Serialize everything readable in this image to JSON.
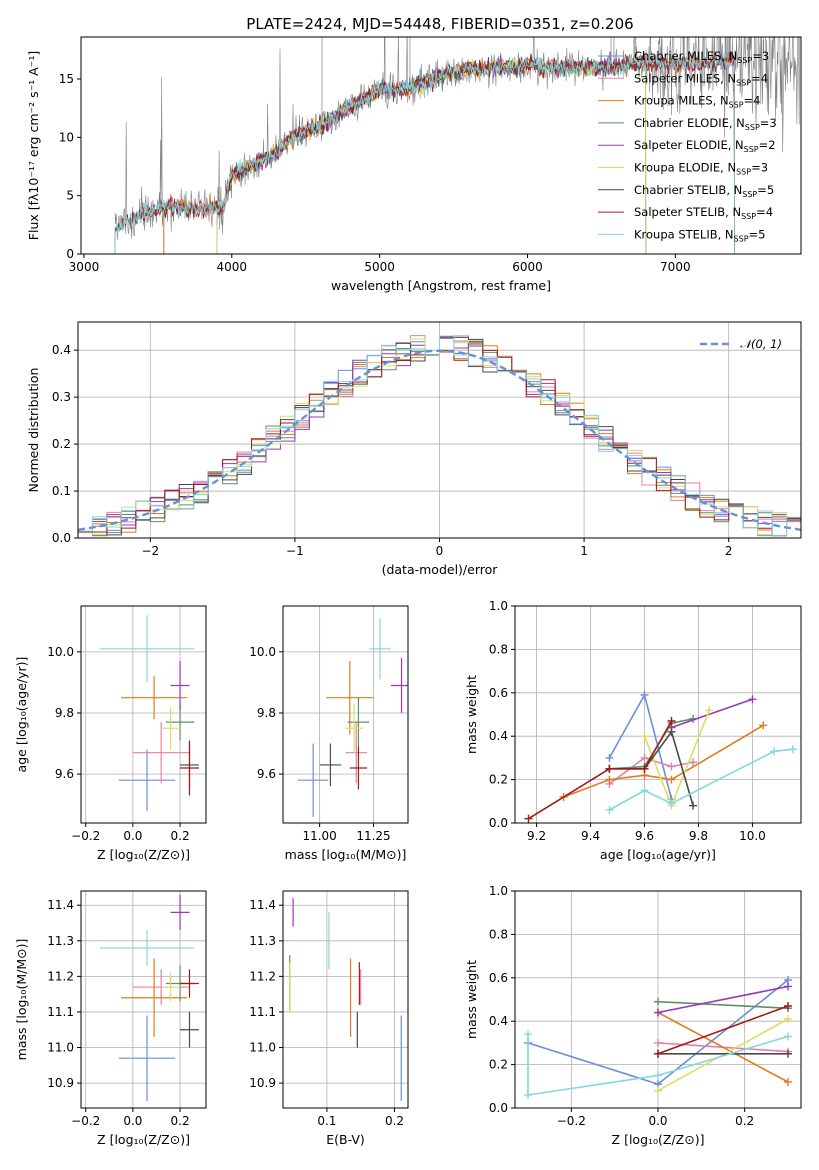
{
  "figure": {
    "title": "PLATE=2424, MJD=54448, FIBERID=0351, z=0.206"
  },
  "colors": {
    "Chabrier MILES": "#6a8fd8",
    "Salpeter MILES": "#e87ea8",
    "Kroupa MILES": "#e07a1f",
    "Chabrier ELODIE": "#5f8f68",
    "Salpeter ELODIE": "#9a38b8",
    "Kroupa ELODIE": "#d8e060",
    "Chabrier STELIB": "#4a4a4a",
    "Salpeter STELIB": "#a01a1a",
    "Kroupa STELIB": "#80d8e0",
    "data": "#7f7f7f",
    "gaussian": "#6a8fd8"
  },
  "chart_data": [
    {
      "id": "spectrum",
      "type": "line",
      "xlabel": "wavelength [Angstrom, rest frame]",
      "ylabel": "Flux [fλ10⁻¹⁷ erg cm⁻² s⁻¹ A⁻¹]",
      "xlim": [
        2980,
        7850
      ],
      "ylim": [
        0,
        18.6
      ],
      "xticks": [
        3000,
        4000,
        5000,
        6000,
        7000
      ],
      "yticks": [
        0,
        5,
        10,
        15
      ],
      "grid": false,
      "legend_position": "top-right",
      "continuum_points": [
        [
          3200,
          0
        ],
        [
          3210,
          2.2
        ],
        [
          3400,
          3.4
        ],
        [
          3600,
          4.2
        ],
        [
          3700,
          3.8
        ],
        [
          3850,
          4.0
        ],
        [
          3950,
          4.1
        ],
        [
          4000,
          6.8
        ],
        [
          4100,
          7.4
        ],
        [
          4300,
          8.6
        ],
        [
          4400,
          10.0
        ],
        [
          4600,
          11.0
        ],
        [
          4800,
          12.6
        ],
        [
          5000,
          14.0
        ],
        [
          5200,
          14.2
        ],
        [
          5400,
          15.3
        ],
        [
          5600,
          15.8
        ],
        [
          5800,
          15.9
        ],
        [
          6000,
          16.2
        ],
        [
          6200,
          16.0
        ],
        [
          6500,
          16.0
        ],
        [
          6800,
          16.4
        ],
        [
          7000,
          16.3
        ],
        [
          7200,
          16.4
        ],
        [
          7400,
          16.5
        ]
      ],
      "model_ranges": [
        {
          "name": "Chabrier MILES",
          "range": [
            3540,
            7400
          ]
        },
        {
          "name": "Salpeter MILES",
          "range": [
            3540,
            7400
          ]
        },
        {
          "name": "Kroupa MILES",
          "range": [
            3540,
            7400
          ]
        },
        {
          "name": "Chabrier ELODIE",
          "range": [
            3900,
            6800
          ]
        },
        {
          "name": "Salpeter ELODIE",
          "range": [
            3900,
            6800
          ]
        },
        {
          "name": "Kroupa ELODIE",
          "range": [
            3900,
            6800
          ]
        },
        {
          "name": "Chabrier STELIB",
          "range": [
            3210,
            7400
          ]
        },
        {
          "name": "Salpeter STELIB",
          "range": [
            3210,
            7400
          ]
        },
        {
          "name": "Kroupa STELIB",
          "range": [
            3210,
            7400
          ]
        }
      ],
      "legend": [
        {
          "model": "Chabrier MILES",
          "nssp": "3"
        },
        {
          "model": "Salpeter MILES",
          "nssp": "4"
        },
        {
          "model": "Kroupa MILES",
          "nssp": "4"
        },
        {
          "model": "Chabrier ELODIE",
          "nssp": "3"
        },
        {
          "model": "Salpeter ELODIE",
          "nssp": "2"
        },
        {
          "model": "Kroupa ELODIE",
          "nssp": "3"
        },
        {
          "model": "Chabrier STELIB",
          "nssp": "5"
        },
        {
          "model": "Salpeter STELIB",
          "nssp": "4"
        },
        {
          "model": "Kroupa STELIB",
          "nssp": "5"
        }
      ],
      "legend_label_mid": ", N",
      "legend_label_sub": "SSP",
      "legend_label_eq": "="
    },
    {
      "id": "residuals",
      "type": "step",
      "xlabel": "(data-model)/error",
      "ylabel": "Normed distribution",
      "xlim": [
        -2.5,
        2.5
      ],
      "ylim": [
        0,
        0.46
      ],
      "xticks": [
        -2,
        -1,
        0,
        1,
        2
      ],
      "yticks": [
        0.0,
        0.1,
        0.2,
        0.3,
        0.4
      ],
      "bin_width": 0.1,
      "grid": true,
      "legend_position": "top-right",
      "legend": [
        {
          "label": "𝒩(0, 1)"
        }
      ]
    },
    {
      "id": "age-metallicity",
      "type": "errorbar",
      "xlabel": "Z [log₁₀(Z/Z⊙)]",
      "ylabel": "age  [log₁₀(age/yr)]",
      "xlim": [
        -0.22,
        0.31
      ],
      "ylim": [
        9.44,
        10.15
      ],
      "xticks": [
        -0.2,
        0.0,
        0.2
      ],
      "yticks": [
        9.6,
        9.8,
        10.0
      ],
      "grid": true,
      "points": [
        {
          "name": "Chabrier MILES",
          "x": 0.06,
          "xerr": 0.12,
          "y": 9.58,
          "yerr": 0.1
        },
        {
          "name": "Salpeter MILES",
          "x": 0.12,
          "xerr": 0.12,
          "y": 9.67,
          "yerr": 0.1
        },
        {
          "name": "Kroupa MILES",
          "x": 0.09,
          "xerr": 0.14,
          "y": 9.85,
          "yerr": 0.07
        },
        {
          "name": "Chabrier ELODIE",
          "x": 0.2,
          "xerr": 0.06,
          "y": 9.77,
          "yerr": 0.06
        },
        {
          "name": "Salpeter ELODIE",
          "x": 0.2,
          "xerr": 0.04,
          "y": 9.89,
          "yerr": 0.08
        },
        {
          "name": "Kroupa ELODIE",
          "x": 0.16,
          "xerr": 0.04,
          "y": 9.75,
          "yerr": 0.07
        },
        {
          "name": "Chabrier STELIB",
          "x": 0.24,
          "xerr": 0.04,
          "y": 9.63,
          "yerr": 0.07
        },
        {
          "name": "Salpeter STELIB",
          "x": 0.24,
          "xerr": 0.04,
          "y": 9.62,
          "yerr": 0.09
        },
        {
          "name": "Kroupa STELIB",
          "x": 0.06,
          "xerr": 0.2,
          "y": 10.01,
          "yerr": 0.11
        }
      ]
    },
    {
      "id": "age-mass",
      "type": "errorbar",
      "xlabel": "mass [log₁₀(M/M⊙)]",
      "ylabel": "",
      "xlim": [
        10.83,
        11.41
      ],
      "ylim": [
        9.44,
        10.15
      ],
      "xticks": [
        11.0,
        11.25
      ],
      "yticks": [
        9.6,
        9.8,
        10.0
      ],
      "grid": true,
      "points": [
        {
          "name": "Chabrier MILES",
          "x": 10.97,
          "xerr": 0.07,
          "y": 9.58,
          "yerr": 0.12
        },
        {
          "name": "Salpeter MILES",
          "x": 11.17,
          "xerr": 0.05,
          "y": 9.67,
          "yerr": 0.1
        },
        {
          "name": "Kroupa MILES",
          "x": 11.14,
          "xerr": 0.11,
          "y": 9.85,
          "yerr": 0.12
        },
        {
          "name": "Chabrier ELODIE",
          "x": 11.18,
          "xerr": 0.05,
          "y": 9.77,
          "yerr": 0.08
        },
        {
          "name": "Salpeter ELODIE",
          "x": 11.38,
          "xerr": 0.05,
          "y": 9.89,
          "yerr": 0.09
        },
        {
          "name": "Kroupa ELODIE",
          "x": 11.16,
          "xerr": 0.04,
          "y": 9.75,
          "yerr": 0.08
        },
        {
          "name": "Chabrier STELIB",
          "x": 11.05,
          "xerr": 0.05,
          "y": 9.63,
          "yerr": 0.07
        },
        {
          "name": "Salpeter STELIB",
          "x": 11.18,
          "xerr": 0.04,
          "y": 9.62,
          "yerr": 0.07
        },
        {
          "name": "Kroupa STELIB",
          "x": 11.28,
          "xerr": 0.05,
          "y": 10.01,
          "yerr": 0.1
        }
      ]
    },
    {
      "id": "mass-weight-age",
      "type": "line",
      "xlabel": "age  [log₁₀(age/yr)]",
      "ylabel": "mass weight",
      "xlim": [
        9.12,
        10.18
      ],
      "ylim": [
        0,
        1.0
      ],
      "xticks": [
        9.2,
        9.4,
        9.6,
        9.8,
        10.0
      ],
      "yticks": [
        0.0,
        0.2,
        0.4,
        0.6,
        0.8,
        1.0
      ],
      "grid": true,
      "series": [
        {
          "name": "Chabrier MILES",
          "points": [
            [
              9.47,
              0.3
            ],
            [
              9.6,
              0.59
            ],
            [
              9.7,
              0.11
            ]
          ]
        },
        {
          "name": "Salpeter MILES",
          "points": [
            [
              9.47,
              0.18
            ],
            [
              9.6,
              0.3
            ],
            [
              9.7,
              0.26
            ],
            [
              9.78,
              0.28
            ]
          ]
        },
        {
          "name": "Kroupa MILES",
          "points": [
            [
              9.3,
              0.12
            ],
            [
              9.47,
              0.2
            ],
            [
              9.6,
              0.22
            ],
            [
              9.7,
              0.2
            ],
            [
              10.04,
              0.45
            ]
          ]
        },
        {
          "name": "Chabrier ELODIE",
          "points": [
            [
              9.47,
              0.25
            ],
            [
              9.6,
              0.26
            ],
            [
              9.7,
              0.46
            ],
            [
              9.78,
              0.48
            ]
          ]
        },
        {
          "name": "Salpeter ELODIE",
          "points": [
            [
              9.7,
              0.44
            ],
            [
              10.0,
              0.57
            ]
          ]
        },
        {
          "name": "Kroupa ELODIE",
          "points": [
            [
              9.6,
              0.4
            ],
            [
              9.7,
              0.08
            ],
            [
              9.84,
              0.52
            ]
          ]
        },
        {
          "name": "Chabrier STELIB",
          "points": [
            [
              9.47,
              0.25
            ],
            [
              9.6,
              0.25
            ],
            [
              9.7,
              0.42
            ],
            [
              9.78,
              0.08
            ]
          ]
        },
        {
          "name": "Salpeter STELIB",
          "points": [
            [
              9.17,
              0.02
            ],
            [
              9.47,
              0.25
            ],
            [
              9.6,
              0.25
            ],
            [
              9.7,
              0.47
            ]
          ]
        },
        {
          "name": "Kroupa STELIB",
          "points": [
            [
              9.47,
              0.06
            ],
            [
              9.6,
              0.15
            ],
            [
              9.7,
              0.09
            ],
            [
              10.08,
              0.33
            ],
            [
              10.15,
              0.34
            ]
          ]
        }
      ]
    },
    {
      "id": "mass-metallicity",
      "type": "errorbar",
      "xlabel": "Z [log₁₀(Z/Z⊙)]",
      "ylabel": "mass [log₁₀(M/M⊙)]",
      "xlim": [
        -0.22,
        0.31
      ],
      "ylim": [
        10.83,
        11.44
      ],
      "xticks": [
        -0.2,
        0.0,
        0.2
      ],
      "yticks": [
        10.9,
        11.0,
        11.1,
        11.2,
        11.3,
        11.4
      ],
      "grid": true,
      "points": [
        {
          "name": "Chabrier MILES",
          "x": 0.06,
          "xerr": 0.12,
          "y": 10.97,
          "yerr": 0.12
        },
        {
          "name": "Salpeter MILES",
          "x": 0.12,
          "xerr": 0.12,
          "y": 11.17,
          "yerr": 0.05
        },
        {
          "name": "Kroupa MILES",
          "x": 0.09,
          "xerr": 0.14,
          "y": 11.14,
          "yerr": 0.11
        },
        {
          "name": "Chabrier ELODIE",
          "x": 0.2,
          "xerr": 0.06,
          "y": 11.18,
          "yerr": 0.05
        },
        {
          "name": "Salpeter ELODIE",
          "x": 0.2,
          "xerr": 0.04,
          "y": 11.38,
          "yerr": 0.05
        },
        {
          "name": "Kroupa ELODIE",
          "x": 0.16,
          "xerr": 0.04,
          "y": 11.17,
          "yerr": 0.04
        },
        {
          "name": "Chabrier STELIB",
          "x": 0.24,
          "xerr": 0.04,
          "y": 11.05,
          "yerr": 0.05
        },
        {
          "name": "Salpeter STELIB",
          "x": 0.24,
          "xerr": 0.04,
          "y": 11.18,
          "yerr": 0.04
        },
        {
          "name": "Kroupa STELIB",
          "x": 0.06,
          "xerr": 0.2,
          "y": 11.28,
          "yerr": 0.05
        }
      ]
    },
    {
      "id": "mass-extinction",
      "type": "errorbar",
      "xlabel": "E(B-V)",
      "ylabel": "",
      "xlim": [
        0.035,
        0.22
      ],
      "ylim": [
        10.83,
        11.44
      ],
      "xticks": [
        0.1,
        0.2
      ],
      "yticks": [
        10.9,
        11.0,
        11.1,
        11.2,
        11.3,
        11.4
      ],
      "grid": true,
      "points": [
        {
          "name": "Chabrier MILES",
          "x": 0.21,
          "xerr": 0.0,
          "y": 10.97,
          "yerr": 0.12
        },
        {
          "name": "Salpeter MILES",
          "x": 0.15,
          "xerr": 0.0,
          "y": 11.17,
          "yerr": 0.05
        },
        {
          "name": "Kroupa MILES",
          "x": 0.135,
          "xerr": 0.0,
          "y": 11.14,
          "yerr": 0.11
        },
        {
          "name": "Chabrier ELODIE",
          "x": 0.045,
          "xerr": 0.0,
          "y": 11.18,
          "yerr": 0.08
        },
        {
          "name": "Salpeter ELODIE",
          "x": 0.05,
          "xerr": 0.0,
          "y": 11.38,
          "yerr": 0.04
        },
        {
          "name": "Kroupa ELODIE",
          "x": 0.045,
          "xerr": 0.0,
          "y": 11.17,
          "yerr": 0.07
        },
        {
          "name": "Chabrier STELIB",
          "x": 0.145,
          "xerr": 0.0,
          "y": 11.05,
          "yerr": 0.05
        },
        {
          "name": "Salpeter STELIB",
          "x": 0.148,
          "xerr": 0.0,
          "y": 11.18,
          "yerr": 0.06
        },
        {
          "name": "Kroupa STELIB",
          "x": 0.103,
          "xerr": 0.0,
          "y": 11.3,
          "yerr": 0.08
        }
      ]
    },
    {
      "id": "mass-weight-metallicity",
      "type": "line",
      "xlabel": "Z [log₁₀(Z/Z⊙)]",
      "ylabel": "mass weight",
      "xlim": [
        -0.33,
        0.33
      ],
      "ylim": [
        0,
        1.0
      ],
      "xticks": [
        -0.2,
        0.0,
        0.2
      ],
      "yticks": [
        0.0,
        0.2,
        0.4,
        0.6,
        0.8,
        1.0
      ],
      "grid": true,
      "series": [
        {
          "name": "Chabrier MILES",
          "points": [
            [
              -0.3,
              0.3
            ],
            [
              0.0,
              0.11
            ],
            [
              0.3,
              0.59
            ]
          ]
        },
        {
          "name": "Salpeter MILES",
          "points": [
            [
              0.0,
              0.3
            ],
            [
              0.3,
              0.26
            ]
          ]
        },
        {
          "name": "Kroupa MILES",
          "points": [
            [
              0.0,
              0.44
            ],
            [
              0.3,
              0.12
            ]
          ]
        },
        {
          "name": "Chabrier ELODIE",
          "points": [
            [
              0.0,
              0.49
            ],
            [
              0.3,
              0.46
            ]
          ]
        },
        {
          "name": "Salpeter ELODIE",
          "points": [
            [
              0.0,
              0.44
            ],
            [
              0.3,
              0.56
            ]
          ]
        },
        {
          "name": "Kroupa ELODIE",
          "points": [
            [
              0.0,
              0.08
            ],
            [
              0.3,
              0.41
            ]
          ]
        },
        {
          "name": "Chabrier STELIB",
          "points": [
            [
              0.0,
              0.25
            ],
            [
              0.3,
              0.25
            ]
          ]
        },
        {
          "name": "Salpeter STELIB",
          "points": [
            [
              0.0,
              0.25
            ],
            [
              0.3,
              0.47
            ]
          ]
        },
        {
          "name": "Kroupa STELIB",
          "points": [
            [
              -0.3,
              0.34
            ],
            [
              -0.3,
              0.06
            ],
            [
              0.0,
              0.15
            ],
            [
              0.3,
              0.33
            ]
          ]
        }
      ]
    }
  ]
}
